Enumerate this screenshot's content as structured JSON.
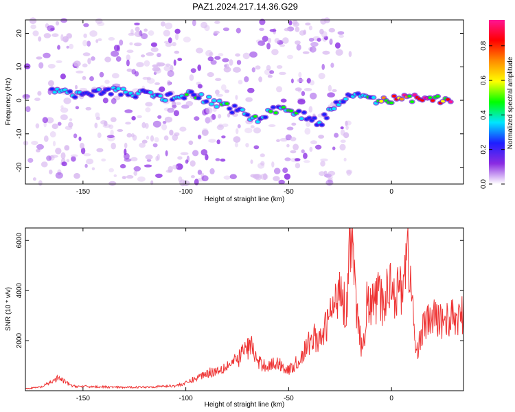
{
  "title": "PAZ1.2024.217.14.36.G29",
  "chart_data": [
    {
      "type": "heatmap",
      "xlabel": "Height of straight line (km)",
      "ylabel": "Frequency (Hz)",
      "xlim": [
        -178,
        35
      ],
      "ylim": [
        -25,
        24
      ],
      "x_ticks": [
        -150,
        -100,
        -50,
        0
      ],
      "y_ticks": [
        -20,
        -10,
        0,
        10,
        20
      ],
      "colorbar": {
        "label": "Normalized spectral amplitude",
        "range": [
          0,
          0.95
        ],
        "ticks": [
          0.0,
          0.2,
          0.4,
          0.6,
          0.8
        ],
        "colormap": [
          "#ffffff",
          "#8a2be2",
          "#1e1eff",
          "#00e5ff",
          "#00ff00",
          "#ffff00",
          "#ff8c00",
          "#ff0000",
          "#ff1493"
        ]
      },
      "ridge": [
        {
          "x": -165,
          "y": 2.5,
          "a": 0.35
        },
        {
          "x": -155,
          "y": 2.0,
          "a": 0.3
        },
        {
          "x": -140,
          "y": 3.0,
          "a": 0.35
        },
        {
          "x": -110,
          "y": 1.0,
          "a": 0.35
        },
        {
          "x": -95,
          "y": 1.5,
          "a": 0.4
        },
        {
          "x": -85,
          "y": -1.0,
          "a": 0.45
        },
        {
          "x": -75,
          "y": -3.0,
          "a": 0.4
        },
        {
          "x": -65,
          "y": -6.0,
          "a": 0.4
        },
        {
          "x": -55,
          "y": -2.0,
          "a": 0.4
        },
        {
          "x": -45,
          "y": -4.0,
          "a": 0.4
        },
        {
          "x": -35,
          "y": -7.0,
          "a": 0.35
        },
        {
          "x": -28,
          "y": -2.0,
          "a": 0.35
        },
        {
          "x": -20,
          "y": 2.0,
          "a": 0.3
        },
        {
          "x": -10,
          "y": 0.0,
          "a": 0.5
        },
        {
          "x": 0,
          "y": 0.0,
          "a": 0.85
        },
        {
          "x": 10,
          "y": 0.5,
          "a": 0.85
        },
        {
          "x": 20,
          "y": 0.5,
          "a": 0.8
        },
        {
          "x": 30,
          "y": 0.0,
          "a": 0.85
        }
      ]
    },
    {
      "type": "line",
      "xlabel": "Height of straight line (km)",
      "ylabel": "SNR (10 * v/v)",
      "xlim": [
        -178,
        35
      ],
      "ylim": [
        0,
        6500
      ],
      "x_ticks": [
        -150,
        -100,
        -50,
        0
      ],
      "y_ticks": [
        2000,
        4000,
        6000
      ],
      "color": "#ee3333",
      "series": [
        {
          "x": [
            -178,
            -170,
            -162,
            -155,
            -145,
            -130,
            -115,
            -105,
            -100,
            -95,
            -90,
            -85,
            -80,
            -75,
            -72,
            -68,
            -65,
            -60,
            -55,
            -50,
            -45,
            -42,
            -38,
            -35,
            -30,
            -27,
            -25,
            -22,
            -20,
            -18,
            -16,
            -14,
            -12,
            -10,
            -8,
            -6,
            -4,
            -2,
            0,
            2,
            5,
            8,
            10,
            12,
            14,
            16,
            20,
            25,
            30,
            35
          ],
          "y": [
            80,
            150,
            500,
            180,
            160,
            130,
            160,
            200,
            300,
            500,
            700,
            800,
            1000,
            1200,
            1600,
            1800,
            1100,
            1000,
            1100,
            800,
            1200,
            1600,
            2200,
            1900,
            3000,
            3500,
            4500,
            3000,
            6500,
            4200,
            2500,
            1400,
            3500,
            3300,
            3600,
            3800,
            3300,
            4000,
            4500,
            3800,
            4200,
            5600,
            3600,
            1400,
            2200,
            2600,
            2900,
            2800,
            2900,
            3000
          ]
        }
      ]
    }
  ]
}
